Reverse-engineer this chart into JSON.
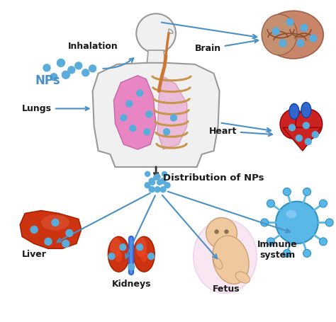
{
  "background_color": "#ffffff",
  "nps_label": "NPs",
  "inhalation_label": "Inhalation",
  "lungs_label": "Lungs",
  "brain_label": "Brain",
  "heart_label": "Heart",
  "distribution_label": "Distribution of NPs",
  "liver_label": "Liver",
  "kidneys_label": "Kidneys",
  "fetus_label": "Fetus",
  "immune_label": "Immune\nsystem",
  "arrow_color": "#4a90c4",
  "np_dot_color": "#5aacda",
  "text_color_black": "#1a1a1a",
  "text_color_blue": "#4a90c4",
  "body_fill": "#f0f0f0",
  "body_edge": "#999999",
  "lung_color": "#e87bbf",
  "rib_color": "#c8954a",
  "figsize": [
    4.74,
    4.55
  ],
  "dpi": 100
}
